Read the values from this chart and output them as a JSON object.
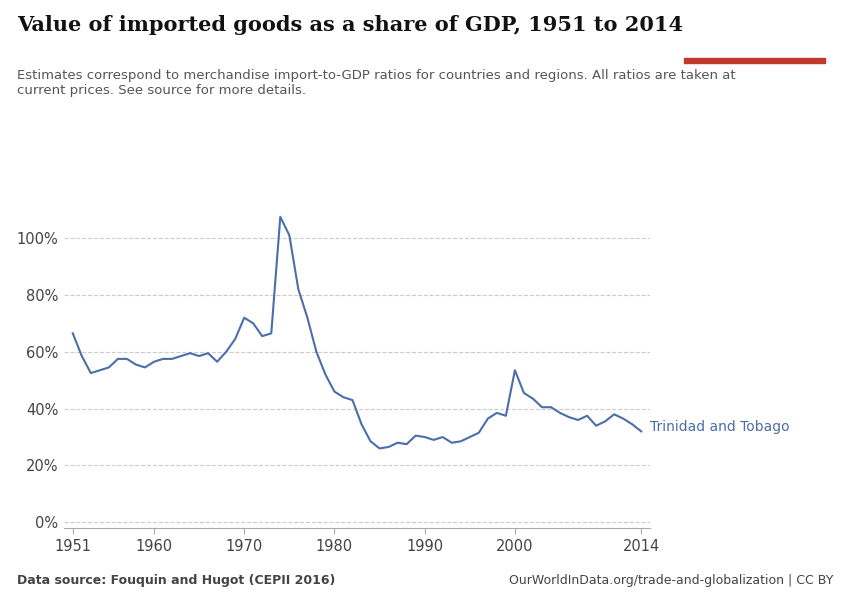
{
  "title": "Value of imported goods as a share of GDP, 1951 to 2014",
  "subtitle": "Estimates correspond to merchandise import-to-GDP ratios for countries and regions. All ratios are taken at\ncurrent prices. See source for more details.",
  "datasource": "Data source: Fouquin and Hugot (CEPII 2016)",
  "url": "OurWorldInData.org/trade-and-globalization | CC BY",
  "label": "Trinidad and Tobago",
  "line_color": "#4c6ea8",
  "background_color": "#ffffff",
  "years": [
    1951,
    1952,
    1953,
    1954,
    1955,
    1956,
    1957,
    1958,
    1959,
    1960,
    1961,
    1962,
    1963,
    1964,
    1965,
    1966,
    1967,
    1968,
    1969,
    1970,
    1971,
    1972,
    1973,
    1974,
    1975,
    1976,
    1977,
    1978,
    1979,
    1980,
    1981,
    1982,
    1983,
    1984,
    1985,
    1986,
    1987,
    1988,
    1989,
    1990,
    1991,
    1992,
    1993,
    1994,
    1995,
    1996,
    1997,
    1998,
    1999,
    2000,
    2001,
    2002,
    2003,
    2004,
    2005,
    2006,
    2007,
    2008,
    2009,
    2010,
    2011,
    2012,
    2013,
    2014
  ],
  "values": [
    0.665,
    0.585,
    0.525,
    0.535,
    0.545,
    0.575,
    0.575,
    0.555,
    0.545,
    0.565,
    0.575,
    0.575,
    0.585,
    0.595,
    0.585,
    0.595,
    0.565,
    0.6,
    0.645,
    0.72,
    0.7,
    0.655,
    0.665,
    1.075,
    1.01,
    0.82,
    0.72,
    0.6,
    0.52,
    0.46,
    0.44,
    0.43,
    0.345,
    0.285,
    0.26,
    0.265,
    0.28,
    0.275,
    0.305,
    0.3,
    0.29,
    0.3,
    0.28,
    0.285,
    0.3,
    0.315,
    0.365,
    0.385,
    0.375,
    0.535,
    0.455,
    0.435,
    0.405,
    0.405,
    0.385,
    0.37,
    0.36,
    0.375,
    0.34,
    0.355,
    0.38,
    0.365,
    0.345,
    0.32
  ],
  "yticks": [
    0.0,
    0.2,
    0.4,
    0.6,
    0.8,
    1.0
  ],
  "ytick_labels": [
    "0%",
    "20%",
    "40%",
    "60%",
    "80%",
    "100%"
  ],
  "xticks": [
    1951,
    1960,
    1970,
    1980,
    1990,
    2000,
    2014
  ],
  "xlim": [
    1950,
    2015
  ],
  "ylim": [
    -0.02,
    1.12
  ],
  "owid_box_color": "#1a3a5c",
  "owid_box_red": "#c0392b"
}
